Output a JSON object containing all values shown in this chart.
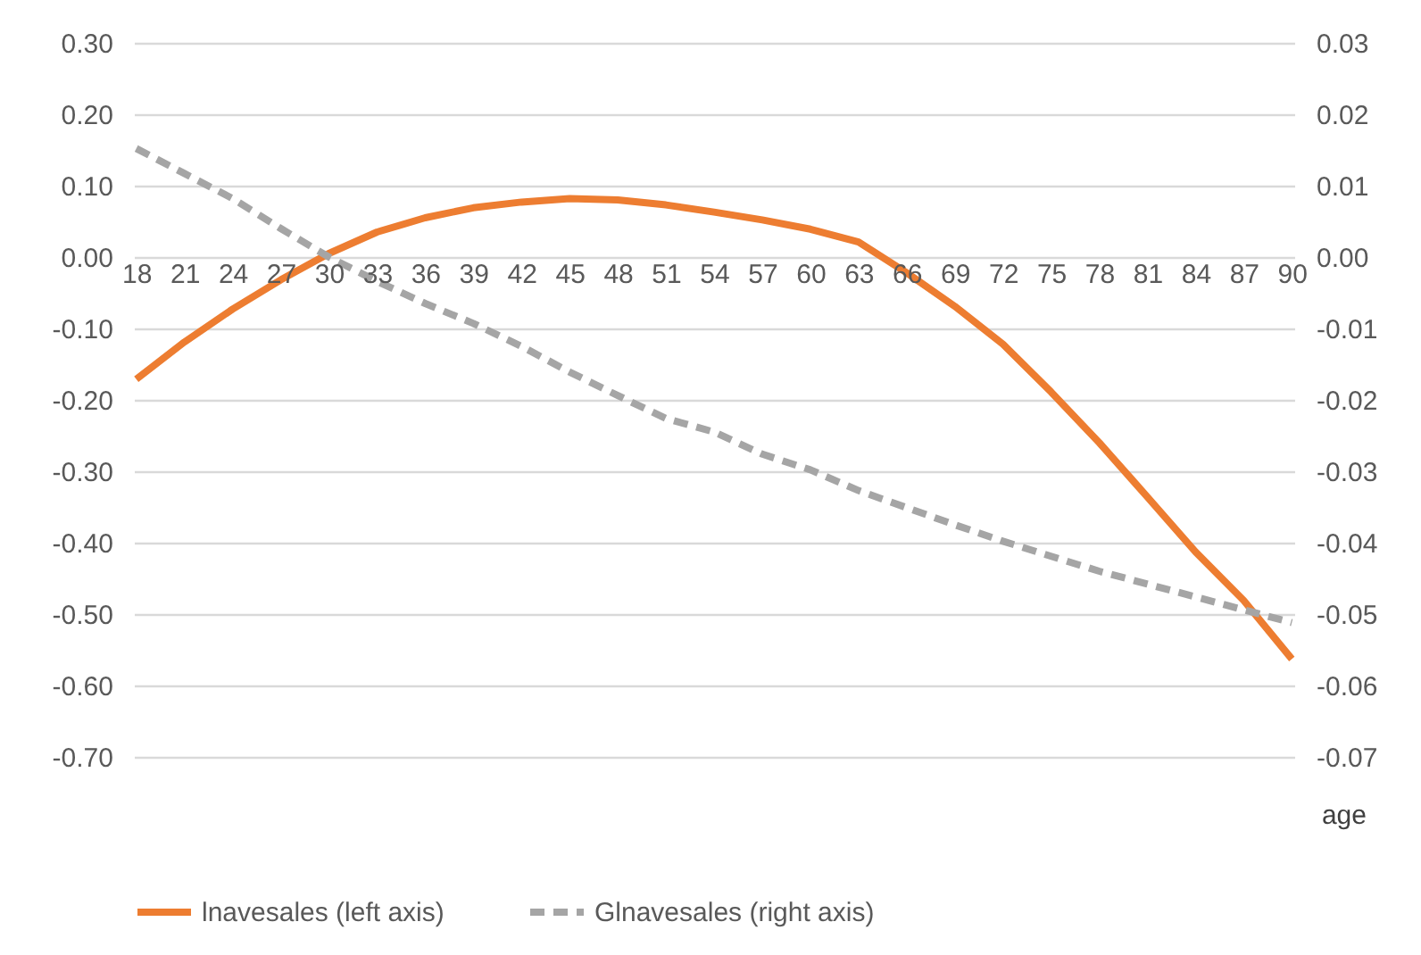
{
  "chart_data": {
    "type": "line",
    "xlabel": "age",
    "categories": [
      "18",
      "21",
      "24",
      "27",
      "30",
      "33",
      "36",
      "39",
      "42",
      "45",
      "48",
      "51",
      "54",
      "57",
      "60",
      "63",
      "66",
      "69",
      "72",
      "75",
      "78",
      "81",
      "84",
      "87",
      "90"
    ],
    "series": [
      {
        "name": "lnavesales (left axis)",
        "color": "#ed7d31",
        "line_style": "solid",
        "values": [
          -0.171,
          -0.119,
          -0.073,
          -0.032,
          0.005,
          0.035,
          0.055,
          0.069,
          0.077,
          0.082,
          0.08,
          0.073,
          0.063,
          0.052,
          0.039,
          0.021,
          -0.022,
          -0.069,
          -0.122,
          -0.189,
          -0.26,
          -0.336,
          -0.413,
          -0.481,
          -0.563
        ]
      },
      {
        "name": "Glnavesales (right axis)",
        "color": "#a5a5a5",
        "line_style": "dashed",
        "axis": "y2",
        "values": [
          0.0152,
          0.0117,
          0.0082,
          0.004,
          0.0,
          -0.0034,
          -0.0065,
          -0.0093,
          -0.0125,
          -0.0161,
          -0.0194,
          -0.0226,
          -0.0245,
          -0.0276,
          -0.0298,
          -0.0327,
          -0.0351,
          -0.0375,
          -0.0398,
          -0.0419,
          -0.044,
          -0.0458,
          -0.0476,
          -0.0494,
          -0.0512
        ]
      }
    ],
    "ylim": [
      -0.7,
      0.3
    ],
    "yticks": [
      {
        "value": -0.7,
        "label": "-0.70"
      },
      {
        "value": -0.6,
        "label": "-0.60"
      },
      {
        "value": -0.5,
        "label": "-0.50"
      },
      {
        "value": -0.4,
        "label": "-0.40"
      },
      {
        "value": -0.3,
        "label": "-0.30"
      },
      {
        "value": -0.2,
        "label": "-0.20"
      },
      {
        "value": -0.1,
        "label": "-0.10"
      },
      {
        "value": 0,
        "label": "0.00"
      },
      {
        "value": 0.1,
        "label": "0.10"
      },
      {
        "value": 0.2,
        "label": "0.20"
      },
      {
        "value": 0.3,
        "label": "0.30"
      }
    ],
    "y2lim": [
      -0.07,
      0.03
    ],
    "y2ticks": [
      {
        "value": -0.07,
        "label": "-0.07"
      },
      {
        "value": -0.06,
        "label": "-0.06"
      },
      {
        "value": -0.05,
        "label": "-0.05"
      },
      {
        "value": -0.04,
        "label": "-0.04"
      },
      {
        "value": -0.03,
        "label": "-0.03"
      },
      {
        "value": -0.02,
        "label": "-0.02"
      },
      {
        "value": -0.01,
        "label": "-0.01"
      },
      {
        "value": 0,
        "label": "0.00"
      },
      {
        "value": 0.01,
        "label": "0.01"
      },
      {
        "value": 0.02,
        "label": "0.02"
      },
      {
        "value": 0.03,
        "label": "0.03"
      }
    ],
    "grid": "y",
    "legend": "bottom",
    "marker": "none"
  }
}
